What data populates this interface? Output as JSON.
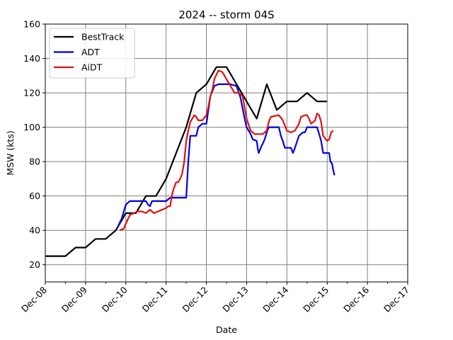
{
  "chart_data": {
    "type": "line",
    "title": "2024 -- storm 04S",
    "xlabel": "Date",
    "ylabel": "MSW (kts)",
    "xlim": [
      0,
      9
    ],
    "ylim": [
      10,
      160
    ],
    "grid": true,
    "legend_position": "top-left",
    "x_ticks": [
      {
        "value": 0,
        "label": "Dec-08"
      },
      {
        "value": 1,
        "label": "Dec-09"
      },
      {
        "value": 2,
        "label": "Dec-10"
      },
      {
        "value": 3,
        "label": "Dec-11"
      },
      {
        "value": 4,
        "label": "Dec-12"
      },
      {
        "value": 5,
        "label": "Dec-13"
      },
      {
        "value": 6,
        "label": "Dec-14"
      },
      {
        "value": 7,
        "label": "Dec-15"
      },
      {
        "value": 8,
        "label": "Dec-16"
      },
      {
        "value": 9,
        "label": "Dec-17"
      }
    ],
    "y_ticks": [
      20,
      40,
      60,
      80,
      100,
      120,
      140,
      160
    ],
    "series": [
      {
        "name": "BestTrack",
        "color": "#000000",
        "points": [
          [
            0,
            25
          ],
          [
            0.25,
            25
          ],
          [
            0.5,
            25
          ],
          [
            0.75,
            30
          ],
          [
            1.0,
            30
          ],
          [
            1.25,
            35
          ],
          [
            1.5,
            35
          ],
          [
            1.75,
            40
          ],
          [
            2.0,
            50
          ],
          [
            2.25,
            50
          ],
          [
            2.5,
            60
          ],
          [
            2.75,
            60
          ],
          [
            3.0,
            70
          ],
          [
            3.25,
            85
          ],
          [
            3.5,
            100
          ],
          [
            3.75,
            120
          ],
          [
            4.0,
            125
          ],
          [
            4.25,
            135
          ],
          [
            4.5,
            135
          ],
          [
            4.75,
            125
          ],
          [
            5.0,
            115
          ],
          [
            5.25,
            105
          ],
          [
            5.5,
            125
          ],
          [
            5.75,
            110
          ],
          [
            6.0,
            115
          ],
          [
            6.25,
            115
          ],
          [
            6.5,
            120
          ],
          [
            6.75,
            115
          ],
          [
            7.0,
            115
          ]
        ]
      },
      {
        "name": "ADT",
        "color": "#0000dd",
        "points": [
          [
            1.8,
            42
          ],
          [
            1.9,
            47
          ],
          [
            2.0,
            55
          ],
          [
            2.1,
            57
          ],
          [
            2.3,
            57
          ],
          [
            2.5,
            57
          ],
          [
            2.55,
            55
          ],
          [
            2.6,
            54
          ],
          [
            2.65,
            57
          ],
          [
            2.8,
            57
          ],
          [
            3.0,
            57
          ],
          [
            3.1,
            59
          ],
          [
            3.5,
            59
          ],
          [
            3.55,
            80
          ],
          [
            3.6,
            95
          ],
          [
            3.75,
            95
          ],
          [
            3.8,
            100
          ],
          [
            3.9,
            102
          ],
          [
            4.0,
            102
          ],
          [
            4.05,
            110
          ],
          [
            4.1,
            118
          ],
          [
            4.2,
            124
          ],
          [
            4.3,
            125
          ],
          [
            4.6,
            125
          ],
          [
            4.75,
            124
          ],
          [
            4.85,
            117
          ],
          [
            4.95,
            105
          ],
          [
            5.0,
            100
          ],
          [
            5.1,
            96
          ],
          [
            5.15,
            93
          ],
          [
            5.25,
            92
          ],
          [
            5.28,
            87
          ],
          [
            5.3,
            85
          ],
          [
            5.35,
            88
          ],
          [
            5.45,
            93
          ],
          [
            5.5,
            97
          ],
          [
            5.55,
            100
          ],
          [
            5.8,
            100
          ],
          [
            5.85,
            95
          ],
          [
            5.9,
            92
          ],
          [
            5.95,
            88
          ],
          [
            6.1,
            88
          ],
          [
            6.15,
            85
          ],
          [
            6.2,
            88
          ],
          [
            6.3,
            95
          ],
          [
            6.4,
            97
          ],
          [
            6.45,
            97
          ],
          [
            6.5,
            100
          ],
          [
            6.75,
            100
          ],
          [
            6.85,
            92
          ],
          [
            6.9,
            85
          ],
          [
            7.05,
            85
          ],
          [
            7.08,
            80
          ],
          [
            7.12,
            79
          ],
          [
            7.15,
            75
          ],
          [
            7.18,
            72
          ]
        ]
      },
      {
        "name": "AiDT",
        "color": "#dd1111",
        "points": [
          [
            1.85,
            40
          ],
          [
            1.95,
            41
          ],
          [
            2.0,
            44
          ],
          [
            2.1,
            49
          ],
          [
            2.2,
            50
          ],
          [
            2.3,
            51
          ],
          [
            2.4,
            51
          ],
          [
            2.5,
            50
          ],
          [
            2.6,
            52
          ],
          [
            2.7,
            50
          ],
          [
            2.8,
            51
          ],
          [
            2.9,
            52
          ],
          [
            3.0,
            53
          ],
          [
            3.05,
            54
          ],
          [
            3.1,
            54
          ],
          [
            3.15,
            61
          ],
          [
            3.2,
            65
          ],
          [
            3.25,
            68
          ],
          [
            3.3,
            68
          ],
          [
            3.35,
            70
          ],
          [
            3.4,
            73
          ],
          [
            3.45,
            80
          ],
          [
            3.5,
            92
          ],
          [
            3.55,
            98
          ],
          [
            3.6,
            103
          ],
          [
            3.65,
            105
          ],
          [
            3.7,
            107
          ],
          [
            3.75,
            106
          ],
          [
            3.8,
            104
          ],
          [
            3.9,
            104
          ],
          [
            4.0,
            107
          ],
          [
            4.05,
            112
          ],
          [
            4.1,
            118
          ],
          [
            4.15,
            122
          ],
          [
            4.2,
            128
          ],
          [
            4.3,
            133
          ],
          [
            4.4,
            132
          ],
          [
            4.5,
            128
          ],
          [
            4.6,
            124
          ],
          [
            4.7,
            120
          ],
          [
            4.8,
            120
          ],
          [
            4.9,
            118
          ],
          [
            5.0,
            105
          ],
          [
            5.1,
            98
          ],
          [
            5.2,
            96
          ],
          [
            5.3,
            96
          ],
          [
            5.4,
            96
          ],
          [
            5.5,
            98
          ],
          [
            5.55,
            103
          ],
          [
            5.6,
            106
          ],
          [
            5.8,
            107
          ],
          [
            5.9,
            104
          ],
          [
            6.0,
            98
          ],
          [
            6.1,
            97
          ],
          [
            6.2,
            98
          ],
          [
            6.3,
            102
          ],
          [
            6.35,
            106
          ],
          [
            6.45,
            107
          ],
          [
            6.5,
            107
          ],
          [
            6.55,
            105
          ],
          [
            6.6,
            102
          ],
          [
            6.7,
            104
          ],
          [
            6.75,
            108
          ],
          [
            6.8,
            107
          ],
          [
            6.85,
            103
          ],
          [
            6.9,
            95
          ],
          [
            7.0,
            92
          ],
          [
            7.05,
            93
          ],
          [
            7.1,
            97
          ],
          [
            7.15,
            98
          ]
        ]
      }
    ]
  }
}
